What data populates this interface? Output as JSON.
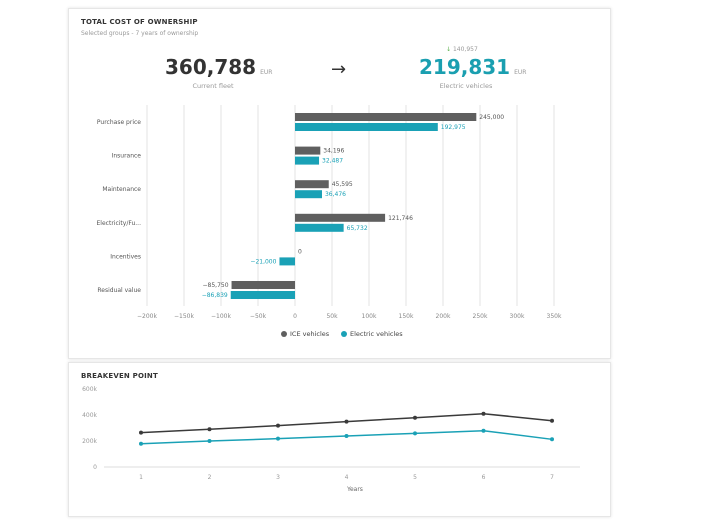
{
  "tco": {
    "title": "TOTAL COST OF OWNERSHIP",
    "subtitle": "Selected groups - 7 years of ownership",
    "current_value": "360,788",
    "current_unit": "EUR",
    "current_label": "Current fleet",
    "arrow_icon": "arrow-right",
    "ev_delta": "140,957",
    "ev_delta_icon": "arrow-down",
    "ev_value": "219,831",
    "ev_unit": "EUR",
    "ev_label": "Electric vehicles"
  },
  "breakeven": {
    "title": "BREAKEVEN POINT"
  },
  "colors": {
    "ice": "#5f5f5f",
    "ev": "#1aa1b6",
    "ice_line": "#3a3a3a",
    "delta": "#5ab04a"
  },
  "chart_data": [
    {
      "type": "bar",
      "orientation": "horizontal",
      "categories": [
        "Purchase price",
        "Insurance",
        "Maintenance",
        "Electricity/Fu...",
        "Incentives",
        "Residual value"
      ],
      "series": [
        {
          "name": "ICE vehicles",
          "values": [
            245000,
            34196,
            45595,
            121746,
            0,
            -85750
          ],
          "labels": [
            "245,000",
            "34,196",
            "45,595",
            "121,746",
            "0",
            "−85,750"
          ]
        },
        {
          "name": "Electric vehicles",
          "values": [
            192975,
            32487,
            36476,
            65732,
            -21000,
            -86839
          ],
          "labels": [
            "192,975",
            "32,487",
            "36,476",
            "65,732",
            "−21,000",
            "−86,839"
          ]
        }
      ],
      "xlim": [
        -200000,
        350000
      ],
      "xticks": [
        "−200k",
        "−150k",
        "−100k",
        "−50k",
        "0",
        "50k",
        "100k",
        "150k",
        "200k",
        "250k",
        "300k",
        "350k"
      ],
      "grid": true,
      "legend": "bottom"
    },
    {
      "type": "line",
      "x": [
        1,
        2,
        3,
        4,
        5,
        6,
        7
      ],
      "xlabel": "Years",
      "ylim": [
        0,
        600000
      ],
      "yticks": [
        "0",
        "200k",
        "400k",
        "600k"
      ],
      "series": [
        {
          "values": [
            264000,
            290000,
            318000,
            349000,
            379000,
            410000,
            356000
          ]
        },
        {
          "values": [
            179000,
            200000,
            218000,
            238000,
            259000,
            279000,
            213000
          ]
        }
      ],
      "legend": "none"
    }
  ]
}
